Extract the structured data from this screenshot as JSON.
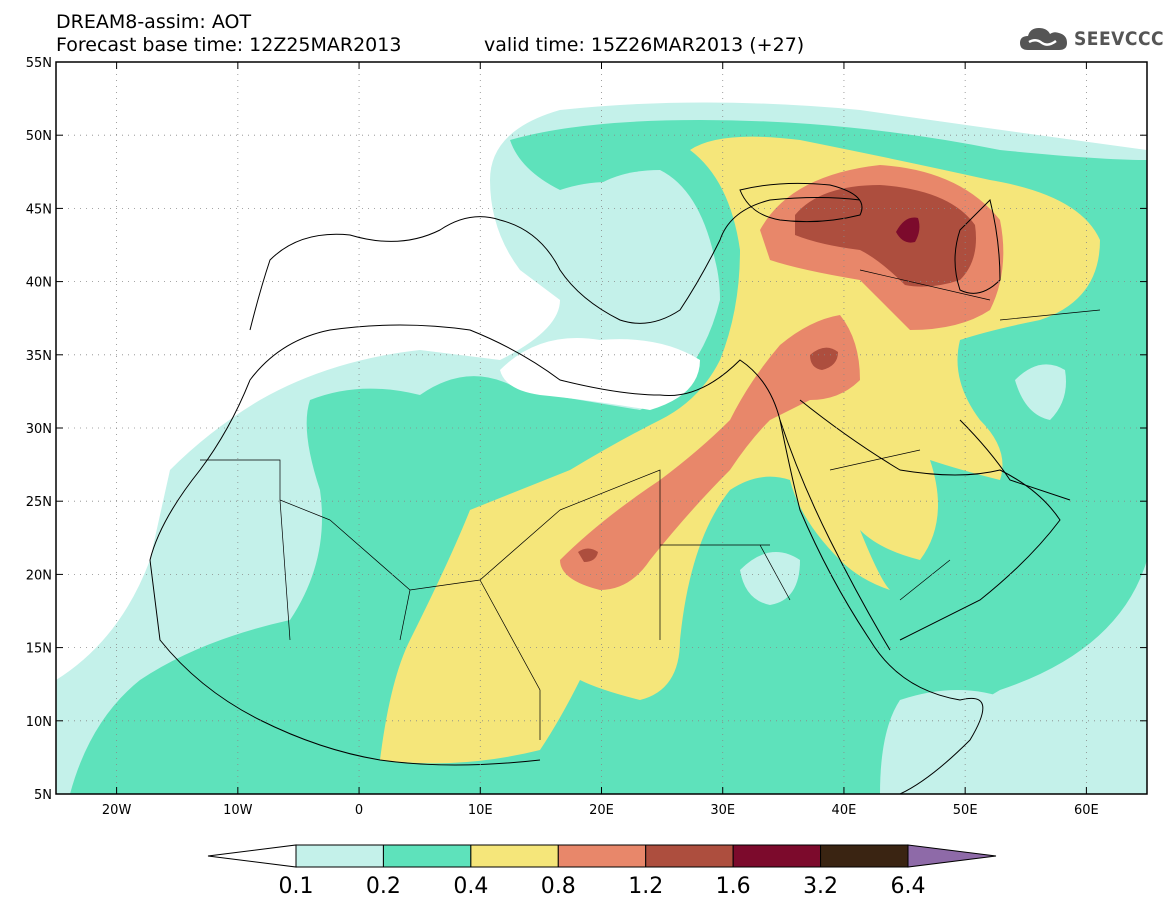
{
  "header": {
    "line1": "DREAM8-assim: AOT",
    "base_time": "Forecast base time: 12Z25MAR2013",
    "valid_time": "valid time: 15Z26MAR2013 (+27)"
  },
  "logo": {
    "text": "SEEVCCC",
    "icon": "cloud-icon"
  },
  "map": {
    "lon_range": [
      -25,
      65
    ],
    "lat_range": [
      5,
      55
    ],
    "lat_ticks": [
      {
        "value": 55,
        "label": "55N"
      },
      {
        "value": 50,
        "label": "50N"
      },
      {
        "value": 45,
        "label": "45N"
      },
      {
        "value": 40,
        "label": "40N"
      },
      {
        "value": 35,
        "label": "35N"
      },
      {
        "value": 30,
        "label": "30N"
      },
      {
        "value": 25,
        "label": "25N"
      },
      {
        "value": 20,
        "label": "20N"
      },
      {
        "value": 15,
        "label": "15N"
      },
      {
        "value": 10,
        "label": "10N"
      },
      {
        "value": 5,
        "label": "5N"
      }
    ],
    "lon_ticks": [
      {
        "value": -20,
        "label": "20W"
      },
      {
        "value": -10,
        "label": "10W"
      },
      {
        "value": 0,
        "label": "0"
      },
      {
        "value": 10,
        "label": "10E"
      },
      {
        "value": 20,
        "label": "20E"
      },
      {
        "value": 30,
        "label": "30E"
      },
      {
        "value": 40,
        "label": "40E"
      },
      {
        "value": 50,
        "label": "50E"
      },
      {
        "value": 60,
        "label": "60E"
      }
    ],
    "grid": "dotted"
  },
  "colorbar": {
    "levels": [
      "0.1",
      "0.2",
      "0.4",
      "0.8",
      "1.2",
      "1.6",
      "3.2",
      "6.4"
    ],
    "colors": [
      "#ffffff",
      "#c4f1ea",
      "#5ee2bb",
      "#f5e67a",
      "#e8876a",
      "#ad4e3e",
      "#7c0a2c",
      "#3a2412",
      "#8e6aa8"
    ]
  }
}
